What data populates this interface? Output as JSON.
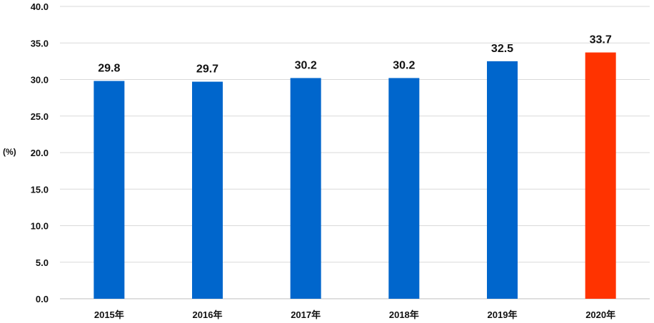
{
  "chart_data": {
    "type": "bar",
    "categories": [
      "2015年",
      "2016年",
      "2017年",
      "2018年",
      "2019年",
      "2020年"
    ],
    "values": [
      29.8,
      29.7,
      30.2,
      30.2,
      32.5,
      33.7
    ],
    "value_labels": [
      "29.8",
      "29.7",
      "30.2",
      "30.2",
      "32.5",
      "33.7"
    ],
    "ylabel": "(%)",
    "ylim": [
      0,
      40
    ],
    "yticks": [
      "0.0",
      "5.0",
      "10.0",
      "15.0",
      "20.0",
      "25.0",
      "30.0",
      "35.0",
      "40.0"
    ],
    "grid": true,
    "colors": {
      "default_bar": "#0066CC",
      "highlight_bar": "#FF3300"
    },
    "highlight_index": 5
  }
}
